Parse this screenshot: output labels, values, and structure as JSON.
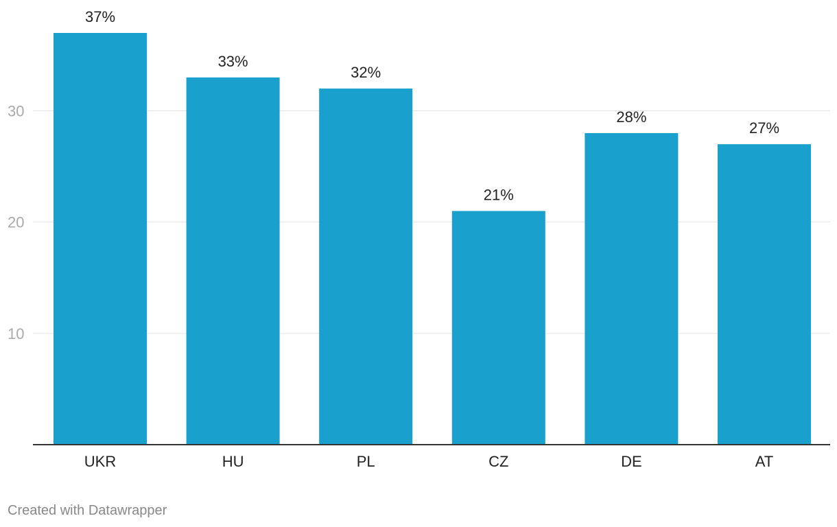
{
  "chart_data": {
    "type": "bar",
    "categories": [
      "UKR",
      "HU",
      "PL",
      "CZ",
      "DE",
      "AT"
    ],
    "values": [
      37,
      33,
      32,
      21,
      28,
      27
    ],
    "data_labels": [
      "37%",
      "33%",
      "32%",
      "21%",
      "28%",
      "27%"
    ],
    "title": "",
    "xlabel": "",
    "ylabel": "",
    "ylim": [
      0,
      37
    ],
    "yticks": [
      10,
      20,
      30
    ],
    "ytick_labels": [
      "10",
      "20",
      "30"
    ],
    "grid": true,
    "bar_color": "#1aa0cc"
  },
  "footer": {
    "credit": "Created with Datawrapper"
  }
}
